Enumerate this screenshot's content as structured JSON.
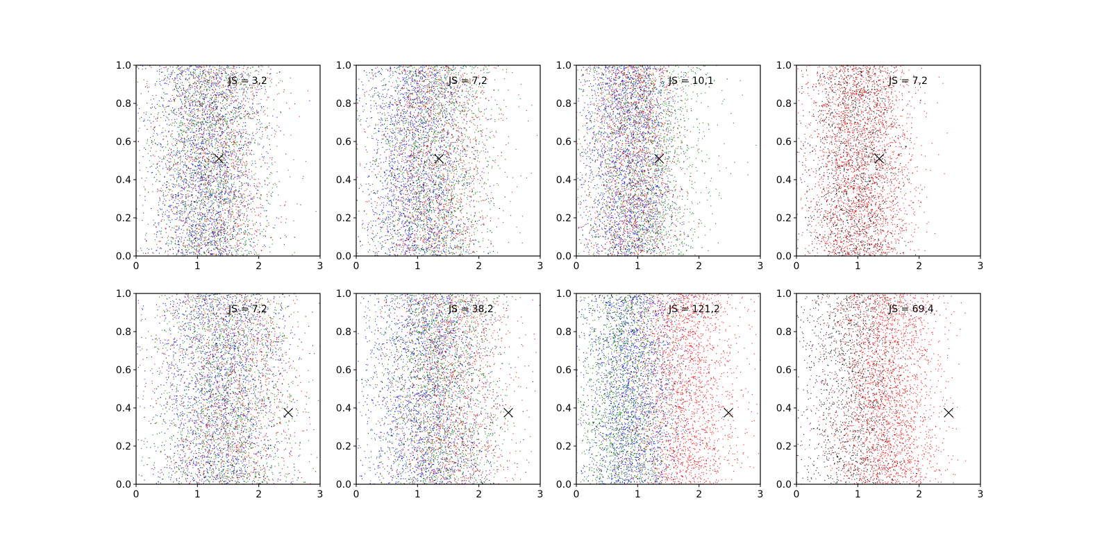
{
  "figure": {
    "layout": {
      "rows": 2,
      "cols": 4
    }
  },
  "chart_data": [
    {
      "type": "scatter",
      "annotation": "JS = 3,2",
      "xlim": [
        0,
        3
      ],
      "ylim": [
        0,
        1
      ],
      "xticks": [
        "0",
        "1",
        "2",
        "3"
      ],
      "yticks": [
        "0.0",
        "0.2",
        "0.4",
        "0.6",
        "0.8",
        "1.0"
      ],
      "marker": {
        "x": 1.35,
        "y": 0.51
      },
      "series": [
        {
          "color": "#0000ff",
          "x_center": 1.15,
          "x_spread": 0.45,
          "count": 1800
        },
        {
          "color": "#008000",
          "x_center": 1.2,
          "x_spread": 0.5,
          "count": 1500
        },
        {
          "color": "#ff0000",
          "x_center": 1.3,
          "x_spread": 0.5,
          "count": 1100
        },
        {
          "color": "#000000",
          "x_center": 1.1,
          "x_spread": 0.45,
          "count": 500
        }
      ]
    },
    {
      "type": "scatter",
      "annotation": "JS = 7,2",
      "xlim": [
        0,
        3
      ],
      "ylim": [
        0,
        1
      ],
      "xticks": [
        "0",
        "1",
        "2",
        "3"
      ],
      "yticks": [
        "0.0",
        "0.2",
        "0.4",
        "0.6",
        "0.8",
        "1.0"
      ],
      "marker": {
        "x": 1.35,
        "y": 0.51
      },
      "series": [
        {
          "color": "#0000ff",
          "x_center": 1.0,
          "x_spread": 0.45,
          "count": 1800
        },
        {
          "color": "#008000",
          "x_center": 1.25,
          "x_spread": 0.55,
          "count": 1500
        },
        {
          "color": "#ff0000",
          "x_center": 1.3,
          "x_spread": 0.5,
          "count": 1200
        },
        {
          "color": "#000000",
          "x_center": 1.1,
          "x_spread": 0.45,
          "count": 400
        }
      ]
    },
    {
      "type": "scatter",
      "annotation": "JS = 10,1",
      "xlim": [
        0,
        3
      ],
      "ylim": [
        0,
        1
      ],
      "xticks": [
        "0",
        "1",
        "2",
        "3"
      ],
      "yticks": [
        "0.0",
        "0.2",
        "0.4",
        "0.6",
        "0.8",
        "1.0"
      ],
      "marker": {
        "x": 1.35,
        "y": 0.51
      },
      "series": [
        {
          "color": "#0000ff",
          "x_center": 0.85,
          "x_spread": 0.4,
          "count": 1900
        },
        {
          "color": "#008000",
          "x_center": 1.1,
          "x_spread": 0.55,
          "count": 1600
        },
        {
          "color": "#ff0000",
          "x_center": 0.95,
          "x_spread": 0.4,
          "count": 1300
        },
        {
          "color": "#000000",
          "x_center": 0.9,
          "x_spread": 0.4,
          "count": 400
        }
      ]
    },
    {
      "type": "scatter",
      "annotation": "JS = 7,2",
      "xlim": [
        0,
        3
      ],
      "ylim": [
        0,
        1
      ],
      "xticks": [
        "0",
        "1",
        "2",
        "3"
      ],
      "yticks": [
        "0.0",
        "0.2",
        "0.4",
        "0.6",
        "0.8",
        "1.0"
      ],
      "marker": {
        "x": 1.35,
        "y": 0.51
      },
      "series": [
        {
          "color": "#ff0000",
          "x_center": 1.05,
          "x_spread": 0.45,
          "count": 2600
        },
        {
          "color": "#000000",
          "x_center": 0.95,
          "x_spread": 0.4,
          "count": 1300
        }
      ]
    },
    {
      "type": "scatter",
      "annotation": "JS = 7,2",
      "xlim": [
        0,
        3
      ],
      "ylim": [
        0,
        1
      ],
      "xticks": [
        "0",
        "1",
        "2",
        "3"
      ],
      "yticks": [
        "0.0",
        "0.2",
        "0.4",
        "0.6",
        "0.8",
        "1.0"
      ],
      "marker": {
        "x": 2.48,
        "y": 0.375
      },
      "series": [
        {
          "color": "#0000ff",
          "x_center": 1.35,
          "x_spread": 0.55,
          "count": 1800
        },
        {
          "color": "#008000",
          "x_center": 1.45,
          "x_spread": 0.6,
          "count": 1500
        },
        {
          "color": "#ff0000",
          "x_center": 1.55,
          "x_spread": 0.6,
          "count": 1100
        },
        {
          "color": "#000000",
          "x_center": 1.4,
          "x_spread": 0.55,
          "count": 450
        }
      ]
    },
    {
      "type": "scatter",
      "annotation": "JS = 38,2",
      "xlim": [
        0,
        3
      ],
      "ylim": [
        0,
        1
      ],
      "xticks": [
        "0",
        "1",
        "2",
        "3"
      ],
      "yticks": [
        "0.0",
        "0.2",
        "0.4",
        "0.6",
        "0.8",
        "1.0"
      ],
      "marker": {
        "x": 2.48,
        "y": 0.375
      },
      "series": [
        {
          "color": "#0000ff",
          "x_center": 1.15,
          "x_spread": 0.5,
          "count": 1800
        },
        {
          "color": "#008000",
          "x_center": 1.35,
          "x_spread": 0.55,
          "count": 1600
        },
        {
          "color": "#ff0000",
          "x_center": 1.55,
          "x_spread": 0.5,
          "count": 1300
        },
        {
          "color": "#000000",
          "x_center": 1.3,
          "x_spread": 0.5,
          "count": 400
        }
      ]
    },
    {
      "type": "scatter",
      "annotation": "JS = 121,2",
      "xlim": [
        0,
        3
      ],
      "ylim": [
        0,
        1
      ],
      "xticks": [
        "0",
        "1",
        "2",
        "3"
      ],
      "yticks": [
        "0.0",
        "0.2",
        "0.4",
        "0.6",
        "0.8",
        "1.0"
      ],
      "marker": {
        "x": 2.48,
        "y": 0.375
      },
      "series": [
        {
          "color": "#ff0000",
          "x_center": 1.75,
          "x_spread": 0.45,
          "count": 2200
        },
        {
          "color": "#0000ff",
          "x_center": 0.9,
          "x_spread": 0.4,
          "count": 1800
        },
        {
          "color": "#008000",
          "x_center": 0.75,
          "x_spread": 0.4,
          "count": 1500
        },
        {
          "color": "#000000",
          "x_center": 0.85,
          "x_spread": 0.4,
          "count": 300
        }
      ]
    },
    {
      "type": "scatter",
      "annotation": "JS = 69,4",
      "xlim": [
        0,
        3
      ],
      "ylim": [
        0,
        1
      ],
      "xticks": [
        "0",
        "1",
        "2",
        "3"
      ],
      "yticks": [
        "0.0",
        "0.2",
        "0.4",
        "0.6",
        "0.8",
        "1.0"
      ],
      "marker": {
        "x": 2.48,
        "y": 0.375
      },
      "series": [
        {
          "color": "#ff0000",
          "x_center": 1.45,
          "x_spread": 0.45,
          "count": 2600
        },
        {
          "color": "#000000",
          "x_center": 0.9,
          "x_spread": 0.45,
          "count": 1300
        }
      ]
    }
  ]
}
